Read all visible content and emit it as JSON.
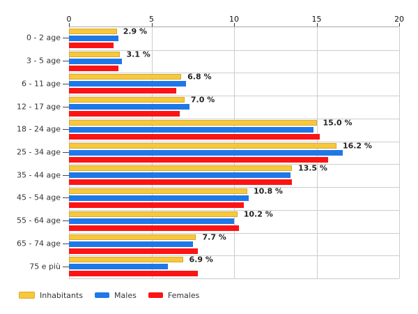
{
  "chart_data": {
    "type": "bar",
    "orientation": "horizontal",
    "title": "",
    "xlabel": "",
    "ylabel": "",
    "categories": [
      "0 - 2 age",
      "3 - 5 age",
      "6 - 11 age",
      "12 - 17 age",
      "18 - 24 age",
      "25 - 34 age",
      "35 - 44 age",
      "45 - 54 age",
      "55 - 64 age",
      "65 - 74 age",
      "75 e più"
    ],
    "series": [
      {
        "name": "Inhabitants",
        "color": "#F7C83B",
        "values": [
          2.9,
          3.1,
          6.8,
          7.0,
          15.0,
          16.2,
          13.5,
          10.8,
          10.2,
          7.7,
          6.9
        ]
      },
      {
        "name": "Males",
        "color": "#1E78E8",
        "values": [
          3.0,
          3.2,
          7.1,
          7.3,
          14.8,
          16.6,
          13.4,
          10.9,
          10.0,
          7.5,
          6.0
        ]
      },
      {
        "name": "Females",
        "color": "#FC1414",
        "values": [
          2.7,
          3.0,
          6.5,
          6.7,
          15.2,
          15.7,
          13.5,
          10.6,
          10.3,
          7.8,
          7.8
        ]
      }
    ],
    "value_labels": [
      "2.9 %",
      "3.1 %",
      "6.8 %",
      "7.0 %",
      "15.0 %",
      "16.2 %",
      "13.5 %",
      "10.8 %",
      "10.2 %",
      "7.7 %",
      "6.9 %"
    ],
    "value_labels_follow_series": "Inhabitants",
    "x_axis": {
      "min": 0,
      "max": 20,
      "ticks": [
        "0",
        "5",
        "10",
        "15",
        "20"
      ],
      "position": "top"
    },
    "grid": "on",
    "legend_position": "bottom-left",
    "background": "#FFFFFF"
  },
  "colors": {
    "grid": "#CCCCCC",
    "axis_line": "#A6A6A6",
    "tick": "#333333",
    "category_text": "#333333",
    "value_label_text": "#222222",
    "yellow_bar_border": "#D9A82F"
  }
}
